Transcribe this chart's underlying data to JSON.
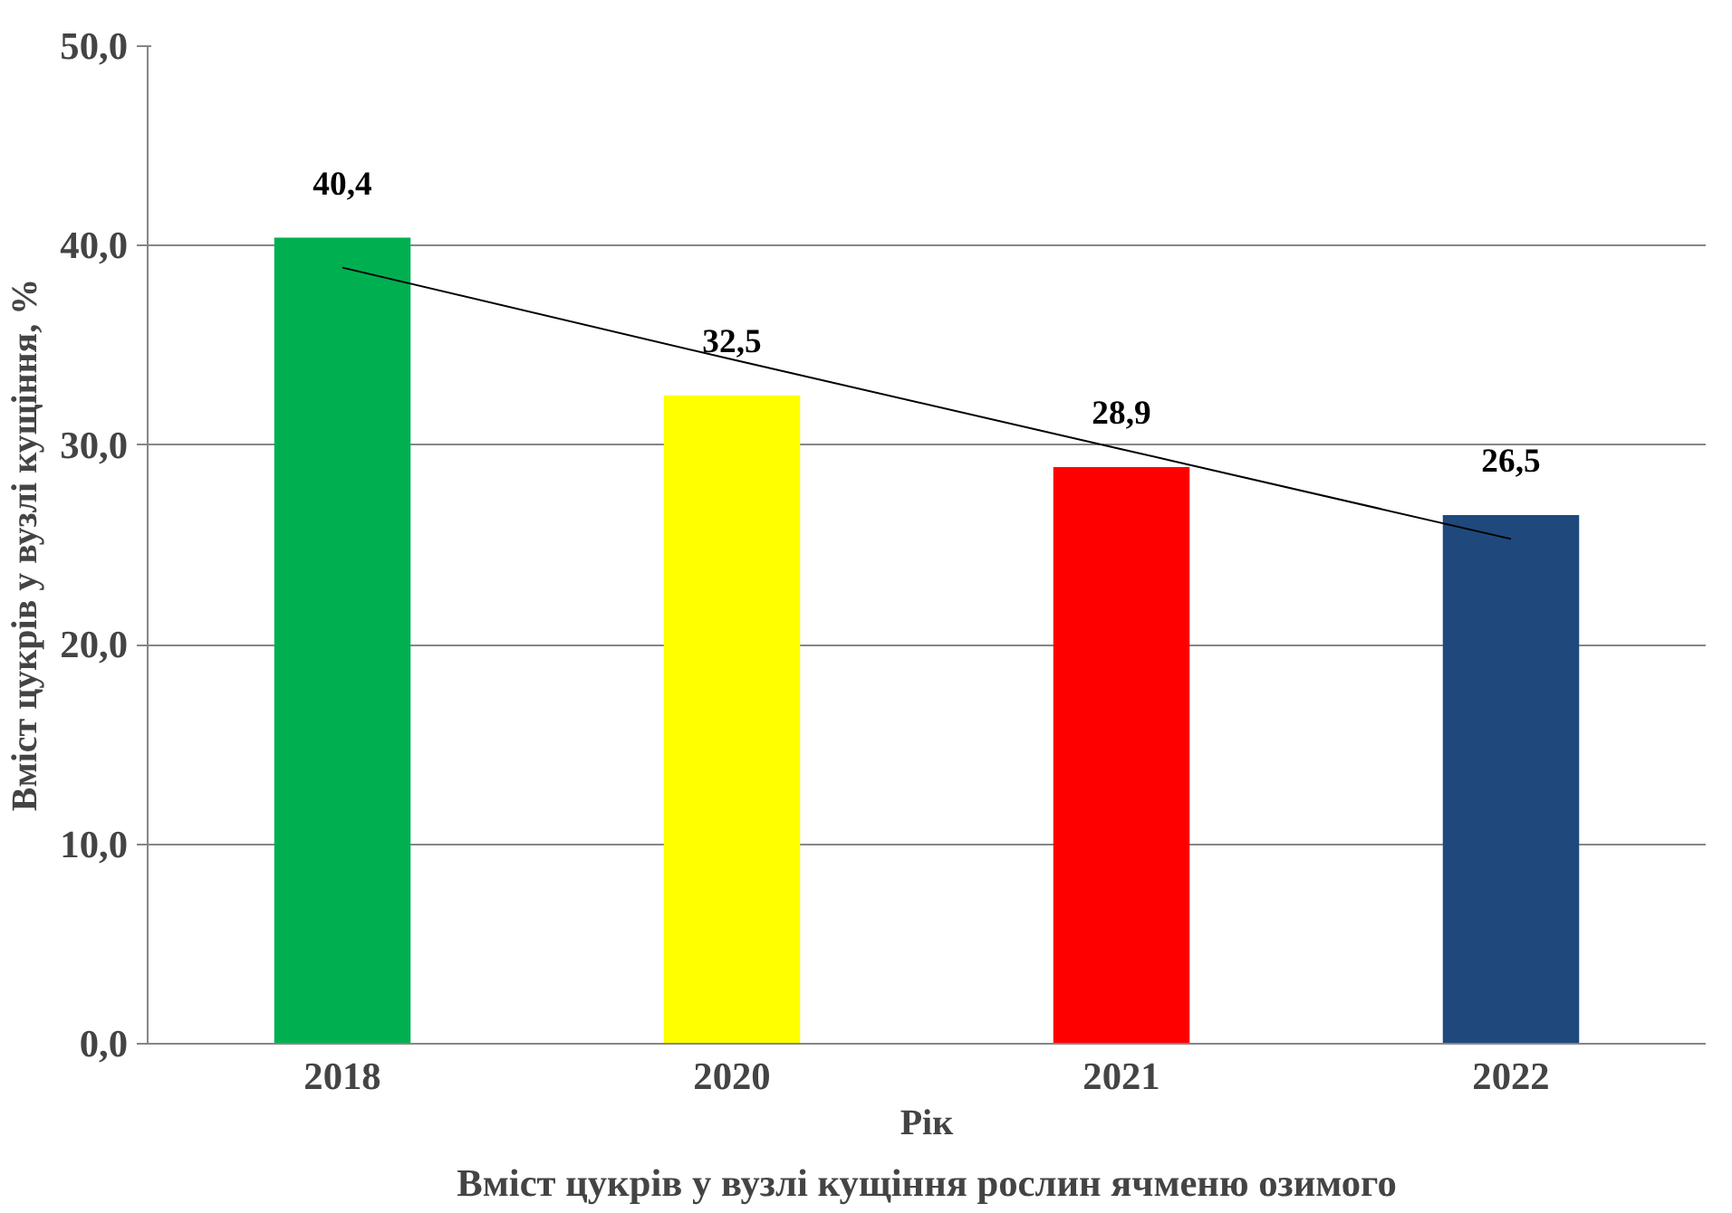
{
  "chart_data": {
    "type": "bar",
    "title": "Вміст цукрів у вузлі кущіння рослин ячменю озимого",
    "xlabel": "Рік",
    "ylabel": "Вміст цукрів у вузлі кущіння, %",
    "categories": [
      "2018",
      "2020",
      "2021",
      "2022"
    ],
    "series": [
      {
        "values": [
          40.4,
          32.5,
          28.9,
          26.5
        ],
        "colors": [
          "#00b050",
          "#ffff00",
          "#ff0000",
          "#1f497d"
        ],
        "value_labels": [
          "40,4",
          "32,5",
          "28,9",
          "26,5"
        ]
      },
      {
        "type": "line",
        "values": [
          38.9,
          34.3,
          29.8,
          25.3
        ],
        "color": "#000000"
      }
    ],
    "ylim": [
      0,
      50
    ],
    "yticks": [
      {
        "value": 0,
        "label": "0,0"
      },
      {
        "value": 10,
        "label": "10,0"
      },
      {
        "value": 20,
        "label": "20,0"
      },
      {
        "value": 30,
        "label": "30,0"
      },
      {
        "value": 40,
        "label": "40,0"
      },
      {
        "value": 50,
        "label": "50,0"
      }
    ],
    "grid": "y"
  }
}
